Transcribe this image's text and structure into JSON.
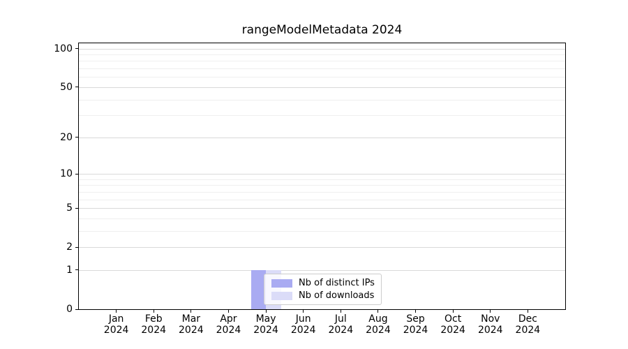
{
  "chart_data": {
    "type": "bar",
    "title": "rangeModelMetadata 2024",
    "categories": [
      "Jan 2024",
      "Feb 2024",
      "Mar 2024",
      "Apr 2024",
      "May 2024",
      "Jun 2024",
      "Jul 2024",
      "Aug 2024",
      "Sep 2024",
      "Oct 2024",
      "Nov 2024",
      "Dec 2024"
    ],
    "series": [
      {
        "name": "Nb of distinct IPs",
        "color": "#a9abf2",
        "values": [
          0,
          0,
          0,
          0,
          1,
          0,
          0,
          0,
          0,
          0,
          0,
          0
        ]
      },
      {
        "name": "Nb of downloads",
        "color": "#dbdcf8",
        "values": [
          0,
          0,
          0,
          0,
          1,
          0,
          0,
          0,
          0,
          0,
          0,
          0
        ]
      }
    ],
    "xlabel": "",
    "ylabel": "",
    "yscale": "log1p",
    "ylim": [
      0,
      110
    ],
    "y_major_ticks": [
      0,
      1,
      2,
      5,
      10,
      20,
      50,
      100
    ],
    "y_minor_ticks": [
      3,
      4,
      6,
      7,
      8,
      9,
      30,
      40,
      60,
      70,
      80,
      90
    ],
    "grid": "horizontal-only",
    "legend_position": "inside-bottom-center"
  },
  "colors": {
    "background": "#ffffff",
    "spine": "#000000",
    "grid_major": "#d9d9d9",
    "grid_minor": "#efefef",
    "text": "#000000",
    "legend_border": "#cccccc"
  }
}
